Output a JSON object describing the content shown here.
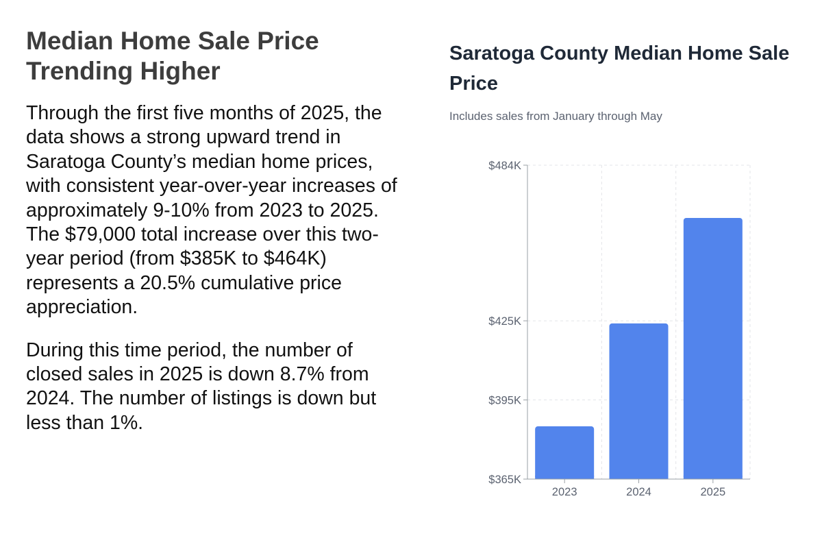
{
  "article": {
    "heading": "Median Home Sale Price Trending Higher",
    "paragraphs": [
      "Through the first five months of 2025, the data shows a strong upward trend in Saratoga County’s median home prices, with consistent year-over-year increases of approximately 9-10% from 2023 to 2025. The $79,000 total increase over this two-year period (from $385K to $464K) represents a 20.5% cumulative price appreciation.",
      "During this time period, the number of closed sales in 2025 is down 8.7% from 2024. The number of listings is down but less than 1%."
    ]
  },
  "chart_data": {
    "type": "bar",
    "title": "Saratoga County Median Home Sale Price",
    "subtitle": "Includes sales from January through May",
    "categories": [
      "2023",
      "2024",
      "2025"
    ],
    "values": [
      385,
      424,
      464
    ],
    "y_ticks": [
      {
        "value": 365,
        "label": "$365K"
      },
      {
        "value": 395,
        "label": "$395K"
      },
      {
        "value": 425,
        "label": "$425K"
      },
      {
        "value": 484,
        "label": "$484K"
      }
    ],
    "ylim": [
      365,
      484
    ],
    "grid": true,
    "bar_color": "#5284EC",
    "grid_color": "#e3e5e8",
    "axis_color": "#9aa0a6"
  }
}
